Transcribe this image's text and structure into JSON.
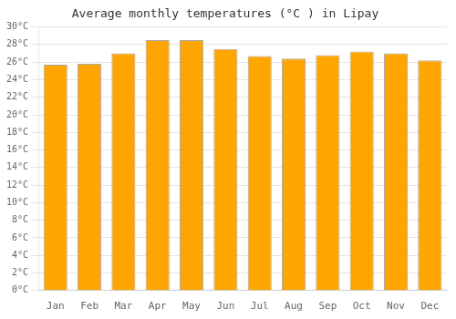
{
  "chart_data": {
    "type": "bar",
    "title": "Average monthly temperatures (°C ) in Lipay",
    "categories": [
      "Jan",
      "Feb",
      "Mar",
      "Apr",
      "May",
      "Jun",
      "Jul",
      "Aug",
      "Sep",
      "Oct",
      "Nov",
      "Dec"
    ],
    "values": [
      25.7,
      25.8,
      27.0,
      28.5,
      28.5,
      27.5,
      26.7,
      26.4,
      26.8,
      27.2,
      27.0,
      26.2
    ],
    "color": "#FFA500",
    "ylim": [
      0,
      30
    ],
    "yticks": [
      {
        "value": 0,
        "label": "0°C"
      },
      {
        "value": 2,
        "label": "2°C"
      },
      {
        "value": 4,
        "label": "4°C"
      },
      {
        "value": 6,
        "label": "6°C"
      },
      {
        "value": 8,
        "label": "8°C"
      },
      {
        "value": 10,
        "label": "10°C"
      },
      {
        "value": 12,
        "label": "12°C"
      },
      {
        "value": 14,
        "label": "14°C"
      },
      {
        "value": 16,
        "label": "16°C"
      },
      {
        "value": 18,
        "label": "18°C"
      },
      {
        "value": 20,
        "label": "20°C"
      },
      {
        "value": 22,
        "label": "22°C"
      },
      {
        "value": 24,
        "label": "24°C"
      },
      {
        "value": 26,
        "label": "26°C"
      },
      {
        "value": 28,
        "label": "28°C"
      },
      {
        "value": 30,
        "label": "30°C"
      }
    ],
    "grid": true
  }
}
